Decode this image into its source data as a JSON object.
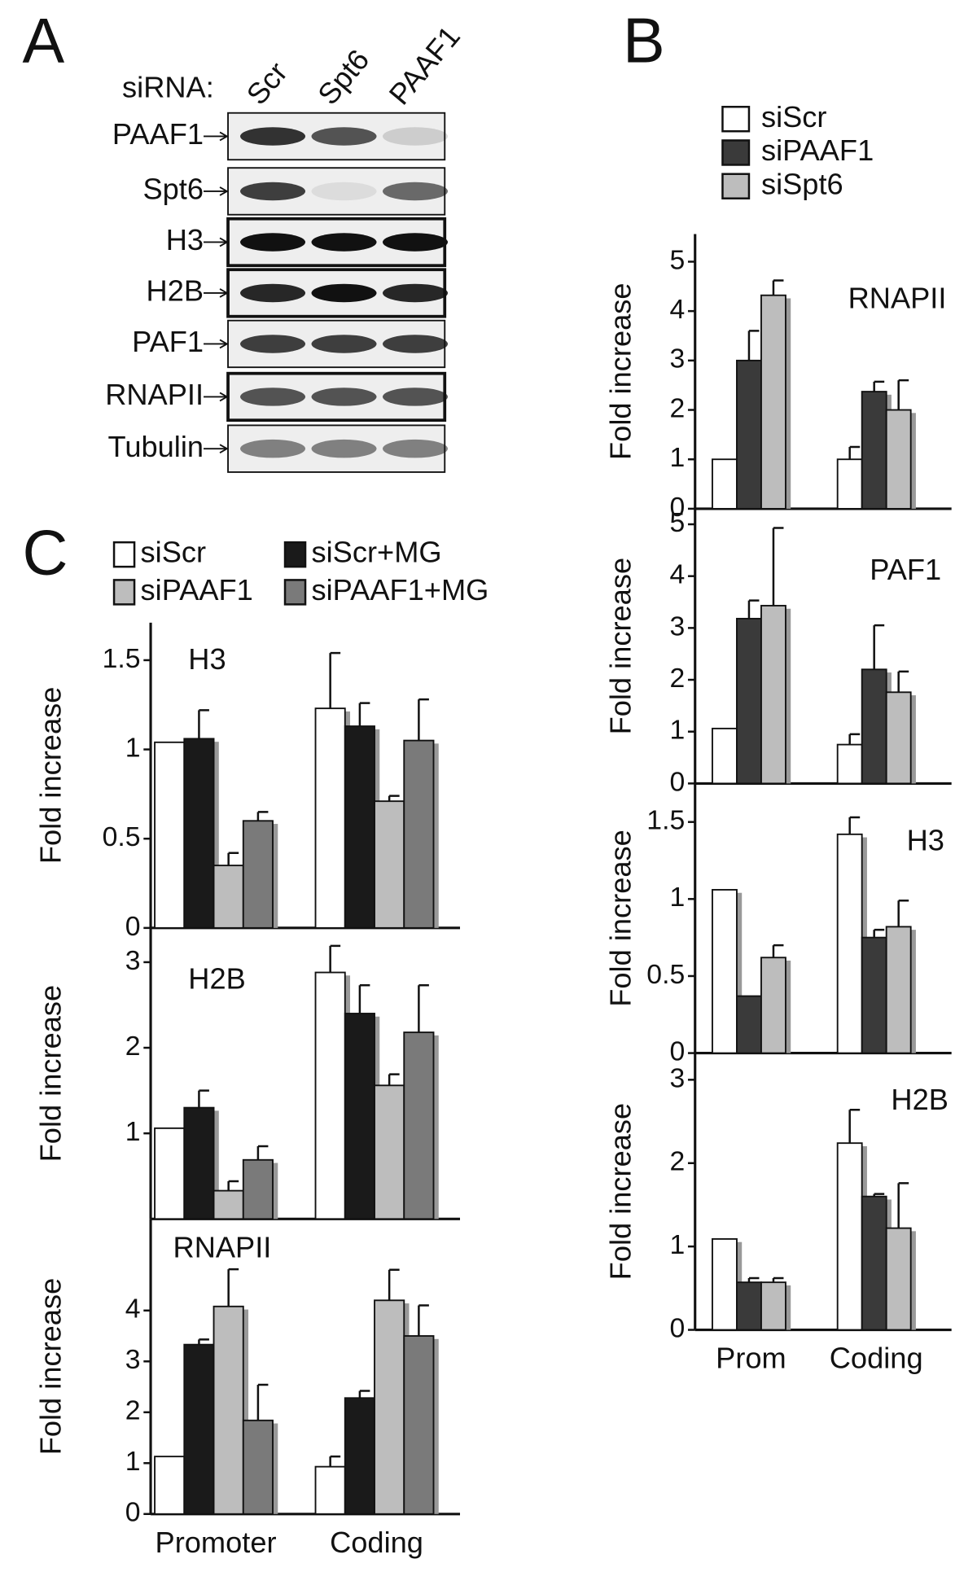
{
  "blot": {
    "panel": "A",
    "lane_title": "siRNA:",
    "lanes": [
      "Scr",
      "Spt6",
      "PAAF1"
    ],
    "rows": [
      "PAAF1",
      "Spt6",
      "H3",
      "H2B",
      "PAF1",
      "RNAPII",
      "Tubulin"
    ]
  },
  "chart_data": [
    {
      "type": "bar",
      "panel": "B",
      "title": "RNAPII",
      "ylabel": "Fold increase",
      "ylim": [
        0,
        5.56
      ],
      "yticks": [
        0,
        1,
        2,
        3,
        4,
        5
      ],
      "series": [
        {
          "name": "siScr",
          "color": "#ffffff",
          "values": [
            1,
            1
          ],
          "errors": [
            0,
            0.25
          ]
        },
        {
          "name": "siPAAF1",
          "color": "#3a3a3a",
          "values": [
            3.0,
            2.37
          ],
          "errors": [
            0.6,
            0.2
          ]
        },
        {
          "name": "siSpt6",
          "color": "#bdbdbd",
          "values": [
            4.32,
            2.0
          ],
          "errors": [
            0.3,
            0.6
          ]
        }
      ]
    },
    {
      "type": "bar",
      "title": "PAF1",
      "ylabel": "Fold increase",
      "ylim": [
        0,
        5.3
      ],
      "yticks": [
        0,
        1,
        2,
        3,
        4,
        5
      ],
      "series": [
        {
          "color": "#ffffff",
          "values": [
            1.06,
            0.75
          ],
          "errors": [
            0,
            0.2
          ]
        },
        {
          "color": "#3a3a3a",
          "values": [
            3.18,
            2.2
          ],
          "errors": [
            0.35,
            0.85
          ]
        },
        {
          "color": "#bdbdbd",
          "values": [
            3.43,
            1.76
          ],
          "errors": [
            1.5,
            0.4
          ]
        }
      ]
    },
    {
      "type": "bar",
      "title": "H3",
      "ylabel": "Fold increase",
      "ylim": [
        0,
        1.75
      ],
      "yticks": [
        0,
        0.5,
        1,
        1.5
      ],
      "series": [
        {
          "color": "#ffffff",
          "values": [
            1.06,
            1.42
          ],
          "errors": [
            0,
            0.11
          ]
        },
        {
          "color": "#3a3a3a",
          "values": [
            0.37,
            0.75
          ],
          "errors": [
            0,
            0.05
          ]
        },
        {
          "color": "#bdbdbd",
          "values": [
            0.62,
            0.82
          ],
          "errors": [
            0.08,
            0.17
          ]
        }
      ]
    },
    {
      "type": "bar",
      "title": "H2B",
      "ylabel": "Fold increase",
      "ylim": [
        0,
        3.32
      ],
      "yticks": [
        0,
        1,
        2,
        3
      ],
      "categories": [
        "Prom",
        "Coding"
      ],
      "series": [
        {
          "color": "#ffffff",
          "values": [
            1.09,
            2.24
          ],
          "errors": [
            0,
            0.4
          ]
        },
        {
          "color": "#3a3a3a",
          "values": [
            0.57,
            1.6
          ],
          "errors": [
            0.05,
            0.03
          ]
        },
        {
          "color": "#bdbdbd",
          "values": [
            0.57,
            1.22
          ],
          "errors": [
            0.05,
            0.54
          ]
        }
      ]
    },
    {
      "type": "bar",
      "panel": "C",
      "title": "H3",
      "ylabel": "Fold increase",
      "ylim": [
        0,
        1.71
      ],
      "yticks": [
        0,
        0.5,
        1,
        1.5
      ],
      "series": [
        {
          "name": "siScr",
          "color": "#ffffff",
          "values": [
            1.04,
            1.23
          ],
          "errors": [
            0,
            0.31
          ]
        },
        {
          "name": "siScr+MG",
          "color": "#1a1a1a",
          "values": [
            1.06,
            1.13
          ],
          "errors": [
            0.16,
            0.13
          ]
        },
        {
          "name": "siPAAF1",
          "color": "#bdbdbd",
          "values": [
            0.35,
            0.71
          ],
          "errors": [
            0.07,
            0.03
          ]
        },
        {
          "name": "siPAAF1+MG",
          "color": "#7a7a7a",
          "values": [
            0.6,
            1.05
          ],
          "errors": [
            0.05,
            0.23
          ]
        }
      ]
    },
    {
      "type": "bar",
      "title": "H2B",
      "ylabel": "Fold increase",
      "ylim": [
        0,
        3.4
      ],
      "yticks": [
        1,
        2,
        3
      ],
      "series": [
        {
          "color": "#ffffff",
          "values": [
            1.06,
            2.88
          ],
          "errors": [
            0,
            0.31
          ]
        },
        {
          "color": "#1a1a1a",
          "values": [
            1.3,
            2.4
          ],
          "errors": [
            0.2,
            0.33
          ]
        },
        {
          "color": "#bdbdbd",
          "values": [
            0.33,
            1.56
          ],
          "errors": [
            0.11,
            0.13
          ]
        },
        {
          "color": "#7a7a7a",
          "values": [
            0.69,
            2.18
          ],
          "errors": [
            0.16,
            0.55
          ]
        }
      ]
    },
    {
      "type": "bar",
      "title": "RNAPII",
      "ylabel": "Fold increase",
      "ylim": [
        0,
        5.8
      ],
      "yticks": [
        0,
        1,
        2,
        3,
        4
      ],
      "categories": [
        "Promoter",
        "Coding"
      ],
      "series": [
        {
          "color": "#ffffff",
          "values": [
            1.13,
            0.93
          ],
          "errors": [
            0,
            0.2
          ]
        },
        {
          "color": "#1a1a1a",
          "values": [
            3.33,
            2.28
          ],
          "errors": [
            0.1,
            0.14
          ]
        },
        {
          "color": "#bdbdbd",
          "values": [
            4.08,
            4.2
          ],
          "errors": [
            0.73,
            0.6
          ]
        },
        {
          "color": "#7a7a7a",
          "values": [
            1.84,
            3.5
          ],
          "errors": [
            0.7,
            0.6
          ]
        }
      ]
    }
  ]
}
